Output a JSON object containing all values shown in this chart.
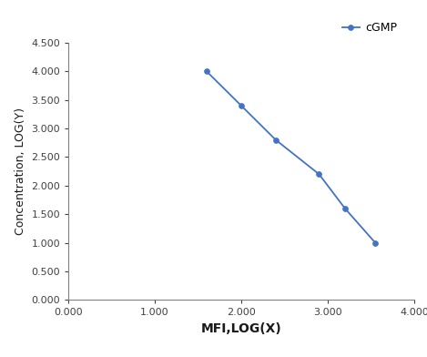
{
  "x": [
    1.6,
    2.0,
    2.4,
    2.9,
    3.2,
    3.55
  ],
  "y": [
    4.0,
    3.4,
    2.8,
    2.2,
    1.6,
    1.0
  ],
  "line_color": "#4472C4",
  "marker_color": "#4472C4",
  "marker_style": "o",
  "marker_size": 4,
  "line_width": 1.3,
  "xlabel": "MFI,LOG(X)",
  "ylabel": "Concentration, LOG(Y)",
  "xlim": [
    0.0,
    4.0
  ],
  "ylim": [
    0.0,
    4.5
  ],
  "xticks": [
    0.0,
    1.0,
    2.0,
    3.0,
    4.0
  ],
  "yticks": [
    0.0,
    0.5,
    1.0,
    1.5,
    2.0,
    2.5,
    3.0,
    3.5,
    4.0,
    4.5
  ],
  "legend_label": "cGMP",
  "xlabel_fontsize": 10,
  "ylabel_fontsize": 9,
  "tick_fontsize": 8,
  "legend_fontsize": 9,
  "background_color": "#ffffff",
  "spine_color": "#808080"
}
